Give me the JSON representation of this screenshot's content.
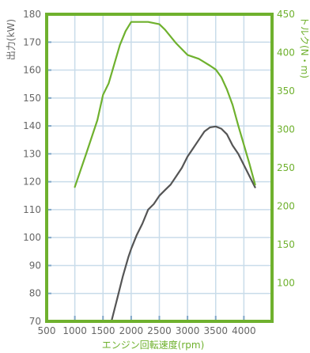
{
  "chart_data": {
    "type": "line",
    "xlabel": "エンジン回転速度(rpm)",
    "ylabel": "出力(kW)",
    "y2label": "トルク(N・m)",
    "xlim": [
      500,
      4500
    ],
    "ylim": [
      70,
      180
    ],
    "y2lim": [
      50,
      450
    ],
    "x_ticks": [
      500,
      1000,
      1500,
      2000,
      2500,
      3000,
      3500,
      4000
    ],
    "y_ticks": [
      70,
      80,
      90,
      100,
      110,
      120,
      130,
      140,
      150,
      160,
      170,
      180
    ],
    "y2_ticks": [
      100,
      150,
      200,
      250,
      300,
      350,
      400,
      450
    ],
    "grid": true,
    "colors": {
      "frame": "#6fb12e",
      "grid": "#c9dcea",
      "tick_mark": "#7fa6c8",
      "power": "#555555",
      "torque": "#6fb12e",
      "left_text": "#666666",
      "right_text": "#6fb12e"
    },
    "series": [
      {
        "axis": "left",
        "x": [
          1650,
          1750,
          1850,
          1950,
          2000,
          2100,
          2200,
          2300,
          2400,
          2500,
          2600,
          2700,
          2800,
          2900,
          3000,
          3100,
          3200,
          3300,
          3400,
          3500,
          3600,
          3700,
          3800,
          3900,
          4000,
          4100,
          4200
        ],
        "values": [
          70,
          78,
          86,
          93,
          96,
          101,
          105,
          110,
          112,
          115,
          117,
          119,
          122,
          125,
          129,
          132,
          135,
          138,
          139.5,
          139.8,
          139,
          137,
          133,
          130,
          126,
          122,
          118
        ]
      },
      {
        "axis": "right",
        "x": [
          1000,
          1200,
          1400,
          1500,
          1600,
          1700,
          1800,
          1900,
          2000,
          2100,
          2300,
          2500,
          2600,
          2800,
          3000,
          3200,
          3400,
          3500,
          3600,
          3700,
          3800,
          3900,
          4000,
          4100,
          4200
        ],
        "values": [
          225,
          268,
          312,
          345,
          360,
          385,
          410,
          428,
          440,
          440,
          440,
          437,
          430,
          412,
          397,
          392,
          383,
          378,
          368,
          352,
          332,
          305,
          280,
          255,
          228
        ]
      }
    ]
  }
}
